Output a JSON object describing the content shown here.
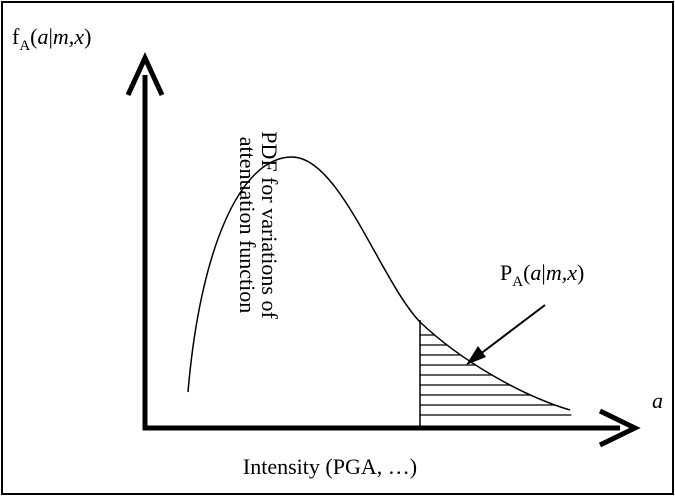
{
  "y_axis_label": {
    "parts": [
      "f",
      "A",
      "(",
      "a",
      "|",
      "m,x",
      ")"
    ]
  },
  "side_label": {
    "lines": [
      "PDF for variations of",
      "attenuation function"
    ]
  },
  "annotation": {
    "parts": [
      "P",
      "A",
      "(",
      "a",
      "|",
      "m,x",
      ")"
    ]
  },
  "x_axis_symbol": "a",
  "x_axis_label": "Intensity (PGA, …)"
}
